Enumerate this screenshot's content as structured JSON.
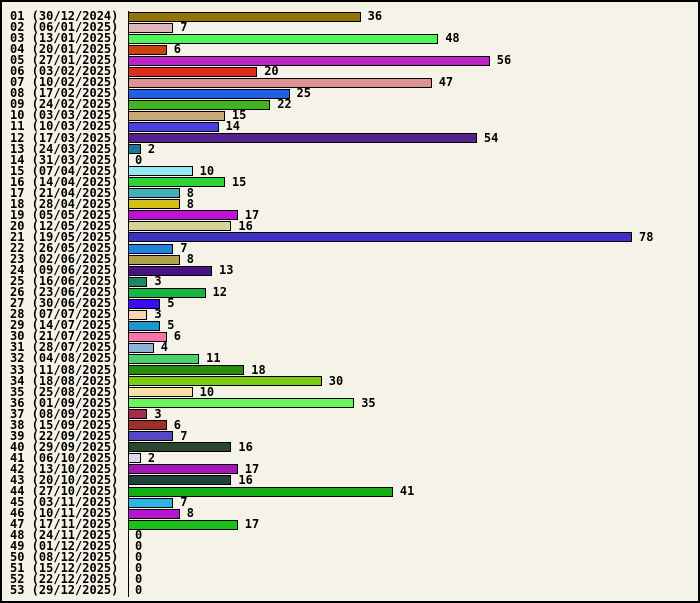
{
  "chart_data": {
    "type": "bar",
    "orientation": "horizontal",
    "title": "",
    "xlabel": "",
    "ylabel": "",
    "xlim": [
      0,
      88
    ],
    "grid": false,
    "legend": "none",
    "value_labels_shown": true,
    "max_value": 78,
    "categories": [
      "01 (30/12/2024)",
      "02 (06/01/2025)",
      "03 (13/01/2025)",
      "04 (20/01/2025)",
      "05 (27/01/2025)",
      "06 (03/02/2025)",
      "07 (10/02/2025)",
      "08 (17/02/2025)",
      "09 (24/02/2025)",
      "10 (03/03/2025)",
      "11 (10/03/2025)",
      "12 (17/03/2025)",
      "13 (24/03/2025)",
      "14 (31/03/2025)",
      "15 (07/04/2025)",
      "16 (14/04/2025)",
      "17 (21/04/2025)",
      "18 (28/04/2025)",
      "19 (05/05/2025)",
      "20 (12/05/2025)",
      "21 (19/05/2025)",
      "22 (26/05/2025)",
      "23 (02/06/2025)",
      "24 (09/06/2025)",
      "25 (16/06/2025)",
      "26 (23/06/2025)",
      "27 (30/06/2025)",
      "28 (07/07/2025)",
      "29 (14/07/2025)",
      "30 (21/07/2025)",
      "31 (28/07/2025)",
      "32 (04/08/2025)",
      "33 (11/08/2025)",
      "34 (18/08/2025)",
      "35 (25/08/2025)",
      "36 (01/09/2025)",
      "37 (08/09/2025)",
      "38 (15/09/2025)",
      "39 (22/09/2025)",
      "40 (29/09/2025)",
      "41 (06/10/2025)",
      "42 (13/10/2025)",
      "43 (20/10/2025)",
      "44 (27/10/2025)",
      "45 (03/11/2025)",
      "46 (10/11/2025)",
      "47 (17/11/2025)",
      "48 (24/11/2025)",
      "49 (01/12/2025)",
      "50 (08/12/2025)",
      "51 (15/12/2025)",
      "52 (22/12/2025)",
      "53 (29/12/2025)"
    ],
    "values": [
      36,
      7,
      48,
      6,
      56,
      20,
      47,
      25,
      22,
      15,
      14,
      54,
      2,
      0,
      10,
      15,
      8,
      8,
      17,
      16,
      78,
      7,
      8,
      13,
      3,
      12,
      5,
      3,
      5,
      6,
      4,
      11,
      18,
      30,
      10,
      35,
      3,
      6,
      7,
      16,
      2,
      17,
      16,
      41,
      7,
      8,
      17,
      0,
      0,
      0,
      0,
      0,
      0
    ],
    "colors": [
      "#95730B",
      "#DFB6B9",
      "#4FF55A",
      "#C8430F",
      "#BE23C8",
      "#DE2D1D",
      "#DE9193",
      "#1E62E2",
      "#42B51E",
      "#C9A97A",
      "#4B40DF",
      "#56208F",
      "#19799B",
      null,
      "#90EAF2",
      "#2FD434",
      "#41AFB7",
      "#D5BD17",
      "#BE13D6",
      "#D7D396",
      "#3D30C2",
      "#2182DE",
      "#B1A14D",
      "#481380",
      "#1C8666",
      "#17B542",
      "#3C0BF0",
      "#F9D7B3",
      "#2094CD",
      "#FB72A9",
      "#8DB1D9",
      "#49D16B",
      "#278D0B",
      "#79CD11",
      "#F5E3A6",
      "#69F65D",
      "#A62B49",
      "#9F2D29",
      "#5449C5",
      "#2B4531",
      "#DBD7ED",
      "#A515B9",
      "#1E4139",
      "#13AE13",
      "#2DB5E5",
      "#B515CD",
      "#1DBF1D",
      null,
      null,
      null,
      null,
      null,
      null
    ]
  },
  "layout_colors": {
    "background": "#F5F3E8",
    "border": "#000000",
    "axis": "#000000",
    "text": "#000000"
  }
}
